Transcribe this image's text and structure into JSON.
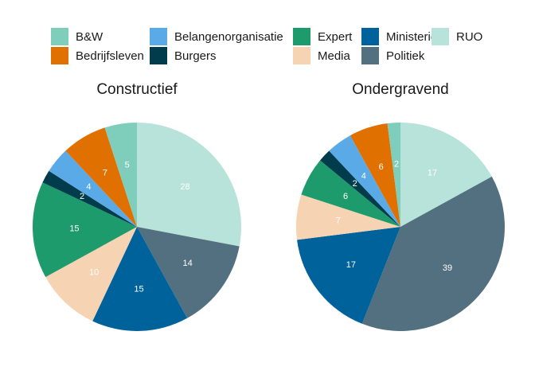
{
  "legend": [
    {
      "name": "B&W",
      "color": "#7fcdbb"
    },
    {
      "name": "Bedrijfsleven",
      "color": "#e07000"
    },
    {
      "name": "Belangenorganisatie",
      "color": "#5aaae8"
    },
    {
      "name": "Burgers",
      "color": "#003c4c"
    },
    {
      "name": "Expert",
      "color": "#1e9b6c"
    },
    {
      "name": "Media",
      "color": "#f6d3b2"
    },
    {
      "name": "Ministerie",
      "color": "#00629b"
    },
    {
      "name": "Politiek",
      "color": "#52707f"
    },
    {
      "name": "RUO",
      "color": "#b8e3da"
    }
  ],
  "chart_data": [
    {
      "type": "pie",
      "title": "Constructief",
      "slices": [
        {
          "category": "RUO",
          "value": 28
        },
        {
          "category": "Politiek",
          "value": 14
        },
        {
          "category": "Ministerie",
          "value": 15
        },
        {
          "category": "Media",
          "value": 10
        },
        {
          "category": "Expert",
          "value": 15
        },
        {
          "category": "Burgers",
          "value": 2
        },
        {
          "category": "Belangenorganisatie",
          "value": 4
        },
        {
          "category": "Bedrijfsleven",
          "value": 7
        },
        {
          "category": "B&W",
          "value": 5
        }
      ]
    },
    {
      "type": "pie",
      "title": "Ondergravend",
      "slices": [
        {
          "category": "RUO",
          "value": 17
        },
        {
          "category": "Politiek",
          "value": 39
        },
        {
          "category": "Ministerie",
          "value": 17
        },
        {
          "category": "Media",
          "value": 7
        },
        {
          "category": "Expert",
          "value": 6
        },
        {
          "category": "Burgers",
          "value": 2
        },
        {
          "category": "Belangenorganisatie",
          "value": 4
        },
        {
          "category": "Bedrijfsleven",
          "value": 6
        },
        {
          "category": "B&W",
          "value": 2
        }
      ]
    }
  ]
}
